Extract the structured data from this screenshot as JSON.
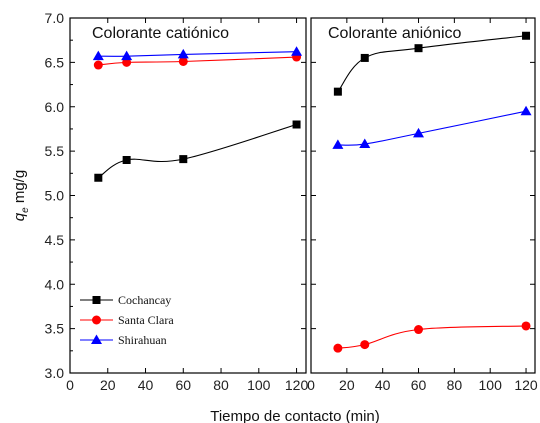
{
  "chart_data": [
    {
      "type": "line",
      "title": "Colorante catiónico",
      "xlabel": "Tiempo de contacto (min)",
      "ylabel": "q_e mg/g",
      "ylabel_parts": {
        "symbol": "q",
        "subscript": "e",
        "unit": "mg/g"
      },
      "xlim": [
        0,
        125
      ],
      "ylim": [
        3.0,
        7.0
      ],
      "xticks": [
        0,
        20,
        40,
        60,
        80,
        100,
        120
      ],
      "yticks": [
        3.0,
        3.5,
        4.0,
        4.5,
        5.0,
        5.5,
        6.0,
        6.5,
        7.0
      ],
      "ytick_labels": [
        "3.0",
        "3.5",
        "4.0",
        "4.5",
        "5.0",
        "5.5",
        "6.0",
        "6.5",
        "7.0"
      ],
      "legend": "bottom-left",
      "grid": false,
      "series": [
        {
          "name": "Cochancay",
          "color": "#000000",
          "marker": "square",
          "x": [
            15,
            30,
            60,
            120
          ],
          "y": [
            5.2,
            5.4,
            5.41,
            5.8
          ]
        },
        {
          "name": "Santa Clara",
          "color": "#ff0000",
          "marker": "circle",
          "x": [
            15,
            30,
            60,
            120
          ],
          "y": [
            6.47,
            6.5,
            6.51,
            6.56
          ]
        },
        {
          "name": "Shirahuan",
          "color": "#0000ff",
          "marker": "triangle",
          "x": [
            15,
            30,
            60,
            120
          ],
          "y": [
            6.57,
            6.57,
            6.59,
            6.62
          ]
        }
      ]
    },
    {
      "type": "line",
      "title": "Colorante aniónico",
      "xlim": [
        0,
        125
      ],
      "ylim": [
        3.0,
        7.0
      ],
      "xticks": [
        0,
        20,
        40,
        60,
        80,
        100,
        120
      ],
      "grid": false,
      "series": [
        {
          "name": "Cochancay",
          "color": "#000000",
          "marker": "square",
          "x": [
            15,
            30,
            60,
            120
          ],
          "y": [
            6.17,
            6.55,
            6.66,
            6.8
          ]
        },
        {
          "name": "Santa Clara",
          "color": "#ff0000",
          "marker": "circle",
          "x": [
            15,
            30,
            60,
            120
          ],
          "y": [
            3.28,
            3.32,
            3.49,
            3.53
          ]
        },
        {
          "name": "Shirahuan",
          "color": "#0000ff",
          "marker": "triangle",
          "x": [
            15,
            30,
            60,
            120
          ],
          "y": [
            5.57,
            5.58,
            5.7,
            5.95
          ]
        }
      ]
    }
  ]
}
